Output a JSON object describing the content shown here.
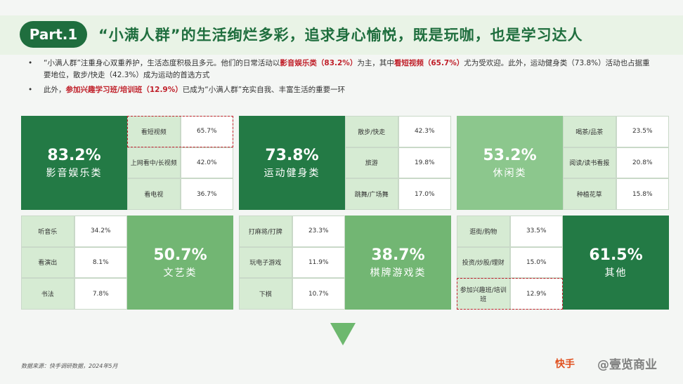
{
  "header": {
    "badge": "Part.1",
    "title": "“小满人群”的生活绚烂多彩，追求身心愉悦，既是玩咖，也是学习达人"
  },
  "bullets": [
    [
      {
        "text": "“小满人群”注重身心双重养护，生活态度积极且多元。他们的日常活动以"
      },
      {
        "text": "影音娱乐类（83.2%）",
        "highlight": true
      },
      {
        "text": "为主，其中"
      },
      {
        "text": "看短视频（65.7%）",
        "highlight": true
      },
      {
        "text": "尤为受欢迎。此外，运动健身类（73.8%）活动也占据重要地位，散步/快走（42.3%）成为运动的首选方式"
      }
    ],
    [
      {
        "text": "此外，"
      },
      {
        "text": "参加兴趣学习班/培训班（12.9%）",
        "highlight": true
      },
      {
        "text": "已成为“小满人群”充实自我、丰富生活的重要一环"
      }
    ]
  ],
  "panels": [
    {
      "pct": "83.2%",
      "label": "影音娱乐类",
      "color": "#237a45",
      "highlight": 0,
      "items": [
        [
          "看短视频",
          "65.7%"
        ],
        [
          "上网看中/长视频",
          "42.0%"
        ],
        [
          "看电视",
          "36.7%"
        ]
      ]
    },
    {
      "pct": "73.8%",
      "label": "运动健身类",
      "color": "#237a45",
      "items": [
        [
          "散步/快走",
          "42.3%"
        ],
        [
          "旅游",
          "19.8%"
        ],
        [
          "跳舞/广场舞",
          "17.0%"
        ]
      ]
    },
    {
      "pct": "53.2%",
      "label": "休闲类",
      "color": "#8cc78d",
      "items": [
        [
          "喝茶/品茶",
          "23.5%"
        ],
        [
          "阅读/读书看报",
          "20.8%"
        ],
        [
          "种植花草",
          "15.8%"
        ]
      ]
    },
    {
      "pct": "50.7%",
      "label": "文艺类",
      "color": "#72b673",
      "items": [
        [
          "听音乐",
          "34.2%"
        ],
        [
          "看演出",
          "8.1%"
        ],
        [
          "书法",
          "7.8%"
        ]
      ]
    },
    {
      "pct": "38.7%",
      "label": "棋牌游戏类",
      "color": "#72b673",
      "items": [
        [
          "打麻将/打牌",
          "23.3%"
        ],
        [
          "玩电子游戏",
          "11.9%"
        ],
        [
          "下棋",
          "10.7%"
        ]
      ]
    },
    {
      "pct": "61.5%",
      "label": "其他",
      "color": "#237a45",
      "highlight": 2,
      "items": [
        [
          "逛街/购物",
          "33.5%"
        ],
        [
          "投资/炒股/理财",
          "15.0%"
        ],
        [
          "参加兴趣班/培训班",
          "12.9%"
        ]
      ]
    }
  ],
  "footer": {
    "source": "数据来源：快手调研数据，2024年5月",
    "logo": "快手",
    "watermark": "@壹览商业"
  }
}
